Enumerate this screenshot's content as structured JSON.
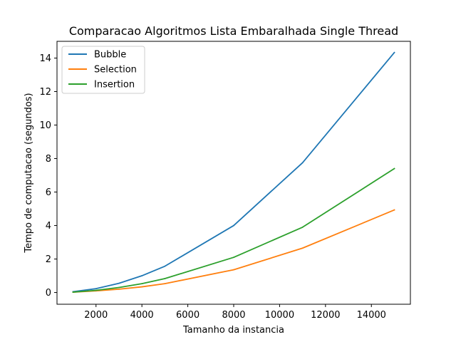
{
  "chart_data": {
    "type": "line",
    "title": "Comparacao Algoritmos Lista Embaralhada Single Thread",
    "xlabel": "Tamanho da instancia",
    "ylabel": "Tempo de computacao (segundos)",
    "xlim": [
      300,
      15700
    ],
    "ylim": [
      -0.7,
      15.0
    ],
    "xticks": [
      2000,
      4000,
      6000,
      8000,
      10000,
      12000,
      14000
    ],
    "yticks": [
      0,
      2,
      4,
      6,
      8,
      10,
      12,
      14
    ],
    "grid": false,
    "legend_position": "top-left",
    "series": [
      {
        "name": "Bubble",
        "color": "#1f77b4",
        "x": [
          1000,
          2000,
          3000,
          4000,
          5000,
          8000,
          11000,
          15000
        ],
        "y": [
          0.05,
          0.23,
          0.55,
          1.0,
          1.57,
          4.0,
          7.75,
          14.33
        ]
      },
      {
        "name": "Selection",
        "color": "#ff7f0e",
        "x": [
          1000,
          2000,
          3000,
          4000,
          5000,
          8000,
          11000,
          15000
        ],
        "y": [
          0.02,
          0.1,
          0.2,
          0.34,
          0.53,
          1.36,
          2.65,
          4.93
        ]
      },
      {
        "name": "Insertion",
        "color": "#2ca02c",
        "x": [
          1000,
          2000,
          3000,
          4000,
          5000,
          8000,
          11000,
          15000
        ],
        "y": [
          0.02,
          0.13,
          0.3,
          0.53,
          0.83,
          2.1,
          3.9,
          7.4
        ]
      }
    ]
  }
}
